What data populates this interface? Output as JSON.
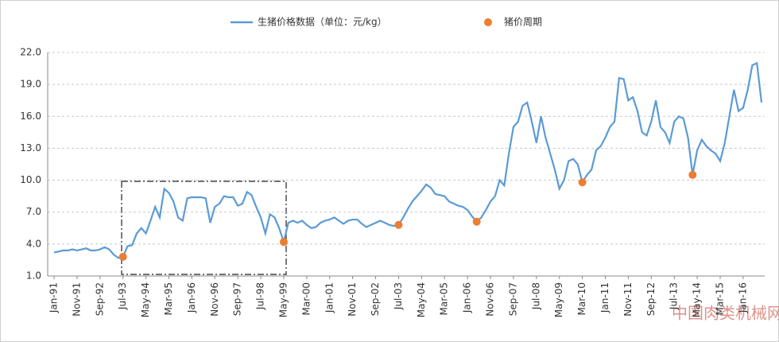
{
  "chart_data": {
    "type": "line",
    "watermark": "中国肉类机械网",
    "categories": [
      "Jan-91",
      null,
      null,
      null,
      null,
      "Nov-91",
      null,
      null,
      null,
      null,
      "Sep-92",
      null,
      null,
      null,
      null,
      "Jul-93",
      null,
      null,
      null,
      null,
      "May-94",
      null,
      null,
      null,
      null,
      "Mar-95",
      null,
      null,
      null,
      null,
      "Jan-96",
      null,
      null,
      null,
      null,
      "Nov-96",
      null,
      null,
      null,
      null,
      "Sep-97",
      null,
      null,
      null,
      null,
      "Jul-98",
      null,
      null,
      null,
      null,
      "May-99",
      null,
      null,
      null,
      null,
      "Mar-00",
      null,
      null,
      null,
      null,
      "Jan-01",
      null,
      null,
      null,
      null,
      "Nov-01",
      null,
      null,
      null,
      null,
      "Sep-02",
      null,
      null,
      null,
      null,
      "Jul-03",
      null,
      null,
      null,
      null,
      "May-04",
      null,
      null,
      null,
      null,
      "Mar-05",
      null,
      null,
      null,
      null,
      "Jan-06",
      null,
      null,
      null,
      null,
      "Nov-06",
      null,
      null,
      null,
      null,
      "Sep-07",
      null,
      null,
      null,
      null,
      "Jul-08",
      null,
      null,
      null,
      null,
      "May-09",
      null,
      null,
      null,
      null,
      "Mar-10",
      null,
      null,
      null,
      null,
      "Jan-11",
      null,
      null,
      null,
      null,
      "Nov-11",
      null,
      null,
      null,
      null,
      "Sep-12",
      null,
      null,
      null,
      null,
      "Jul-13",
      null,
      null,
      null,
      null,
      "May-14",
      null,
      null,
      null,
      null,
      "Mar-15",
      null,
      null,
      null,
      null,
      "Jan-16",
      null,
      null,
      null,
      null
    ],
    "series": [
      {
        "name": "生猪价格数据（单位：元/kg）",
        "color": "#5b9bd5",
        "values": [
          3.2,
          3.3,
          3.4,
          3.4,
          3.5,
          3.4,
          3.5,
          3.6,
          3.4,
          3.4,
          3.5,
          3.7,
          3.5,
          3.0,
          2.7,
          2.8,
          3.8,
          3.9,
          5.0,
          5.5,
          5.0,
          6.2,
          7.5,
          6.5,
          9.2,
          8.8,
          8.0,
          6.5,
          6.2,
          8.3,
          8.4,
          8.4,
          8.4,
          8.3,
          6.0,
          7.5,
          7.8,
          8.5,
          8.4,
          8.4,
          7.6,
          7.8,
          8.9,
          8.6,
          7.5,
          6.5,
          5.0,
          6.8,
          6.5,
          5.5,
          4.2,
          6.0,
          6.2,
          6.0,
          6.2,
          5.8,
          5.5,
          5.6,
          6.0,
          6.2,
          6.3,
          6.5,
          6.2,
          5.9,
          6.2,
          6.3,
          6.3,
          5.9,
          5.6,
          5.8,
          6.0,
          6.2,
          6.0,
          5.8,
          5.7,
          5.8,
          6.5,
          7.3,
          8.0,
          8.5,
          9.0,
          9.6,
          9.3,
          8.7,
          8.6,
          8.5,
          8.0,
          7.8,
          7.6,
          7.5,
          7.2,
          6.6,
          6.1,
          6.5,
          7.2,
          8.0,
          8.5,
          10.0,
          9.5,
          12.5,
          15.0,
          15.5,
          17.0,
          17.3,
          15.5,
          13.5,
          16.0,
          14.0,
          12.5,
          11.0,
          9.2,
          10.0,
          11.8,
          12.0,
          11.5,
          9.8,
          10.5,
          11.0,
          12.8,
          13.2,
          14.0,
          15.0,
          15.5,
          19.6,
          19.5,
          17.5,
          17.8,
          16.5,
          14.5,
          14.2,
          15.5,
          17.5,
          15.0,
          14.5,
          13.5,
          15.5,
          16.0,
          15.8,
          14.0,
          10.5,
          12.8,
          13.8,
          13.2,
          12.8,
          12.5,
          11.8,
          13.5,
          16.0,
          18.5,
          16.5,
          16.8,
          18.5,
          20.8,
          21.0,
          17.3
        ]
      },
      {
        "name": "猪价周期",
        "color": "#ed7d31",
        "type": "scatter",
        "values": [
          null,
          null,
          null,
          null,
          null,
          null,
          null,
          null,
          null,
          null,
          null,
          null,
          null,
          null,
          null,
          2.8,
          null,
          null,
          null,
          null,
          null,
          null,
          null,
          null,
          null,
          null,
          null,
          null,
          null,
          null,
          null,
          null,
          null,
          null,
          null,
          null,
          null,
          null,
          null,
          null,
          null,
          null,
          null,
          null,
          null,
          null,
          null,
          null,
          null,
          null,
          4.2,
          null,
          null,
          null,
          null,
          null,
          null,
          null,
          null,
          null,
          null,
          null,
          null,
          null,
          null,
          null,
          null,
          null,
          null,
          null,
          null,
          null,
          null,
          null,
          null,
          5.8,
          null,
          null,
          null,
          null,
          null,
          null,
          null,
          null,
          null,
          null,
          null,
          null,
          null,
          null,
          null,
          null,
          6.1,
          null,
          null,
          null,
          null,
          null,
          null,
          null,
          null,
          null,
          null,
          null,
          null,
          null,
          null,
          null,
          null,
          null,
          null,
          null,
          null,
          null,
          null,
          9.8,
          null,
          null,
          null,
          null,
          null,
          null,
          null,
          null,
          null,
          null,
          null,
          null,
          null,
          null,
          null,
          null,
          null,
          null,
          null,
          null,
          null,
          null,
          null,
          10.5,
          null,
          null,
          null,
          null,
          null,
          null,
          null,
          null,
          null,
          null,
          null,
          null,
          null,
          null,
          null
        ]
      }
    ],
    "ylim": [
      1.0,
      22.0
    ],
    "yticks": [
      {
        "value": 1,
        "label": "1.0"
      },
      {
        "value": 4,
        "label": "4.0"
      },
      {
        "value": 7,
        "label": "7.0"
      },
      {
        "value": 10,
        "label": "10.0"
      },
      {
        "value": 13,
        "label": "13.0"
      },
      {
        "value": 16,
        "label": "16.0"
      },
      {
        "value": 19,
        "label": "19.0"
      },
      {
        "value": 22,
        "label": "22.0"
      }
    ],
    "grid": true,
    "legend": "top"
  }
}
